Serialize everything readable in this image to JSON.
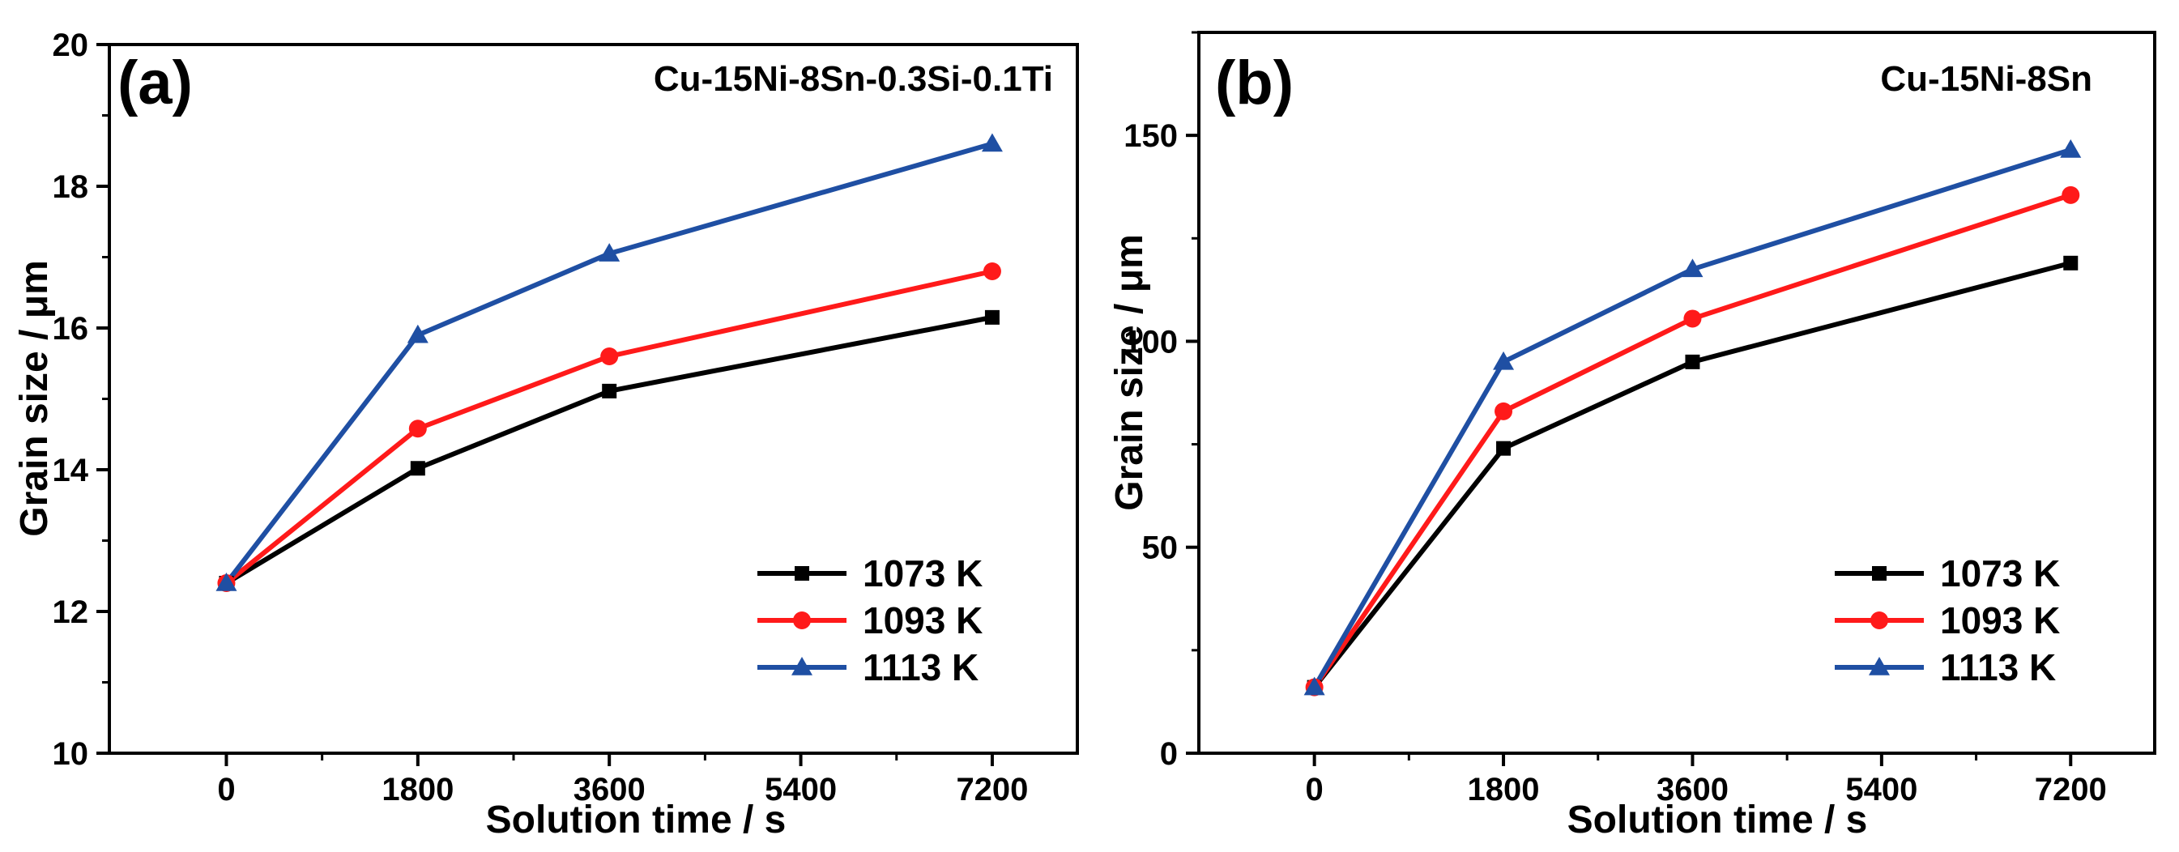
{
  "chart_data": [
    {
      "type": "line",
      "panel_label": "(a)",
      "title": "Cu-15Ni-8Sn-0.3Si-0.1Ti",
      "xlabel": "Solution time / s",
      "ylabel": "Grain size / μm",
      "x": [
        0,
        1800,
        3600,
        7200
      ],
      "xticks": [
        0,
        1800,
        3600,
        5400,
        7200
      ],
      "xtick_labels": [
        "0",
        "1800",
        "3600",
        "5400",
        "7200"
      ],
      "xlim": [
        -1100,
        8000
      ],
      "yticks": [
        10,
        12,
        14,
        16,
        18,
        20
      ],
      "ytick_labels": [
        "10",
        "12",
        "14",
        "16",
        "18",
        "20"
      ],
      "ylim": [
        10,
        20
      ],
      "grid": false,
      "legend_position": "bottom-right",
      "series": [
        {
          "name": "1073 K",
          "color": "#000000",
          "marker": "square",
          "values": [
            12.4,
            14.02,
            15.11,
            16.15
          ]
        },
        {
          "name": "1093 K",
          "color": "#ff1a1a",
          "marker": "circle",
          "values": [
            12.4,
            14.58,
            15.6,
            16.8
          ]
        },
        {
          "name": "1113 K",
          "color": "#1f4fa3",
          "marker": "triangle",
          "values": [
            12.4,
            15.9,
            17.05,
            18.6
          ]
        }
      ]
    },
    {
      "type": "line",
      "panel_label": "(b)",
      "title": "Cu-15Ni-8Sn",
      "xlabel": "Solution time / s",
      "ylabel": "Grain size / μm",
      "x": [
        0,
        1800,
        3600,
        7200
      ],
      "xticks": [
        0,
        1800,
        3600,
        5400,
        7200
      ],
      "xtick_labels": [
        "0",
        "1800",
        "3600",
        "5400",
        "7200"
      ],
      "xlim": [
        -1100,
        8000
      ],
      "yticks": [
        0,
        50,
        100,
        150
      ],
      "ytick_labels": [
        "0",
        "50",
        "100",
        "150"
      ],
      "ylim": [
        0,
        175
      ],
      "grid": false,
      "legend_position": "bottom-right",
      "series": [
        {
          "name": "1073 K",
          "color": "#000000",
          "marker": "square",
          "values": [
            16,
            74,
            95,
            119
          ]
        },
        {
          "name": "1093 K",
          "color": "#ff1a1a",
          "marker": "circle",
          "values": [
            16,
            83,
            105.5,
            135.5
          ]
        },
        {
          "name": "1113 K",
          "color": "#1f4fa3",
          "marker": "triangle",
          "values": [
            16,
            95,
            117.5,
            146.5
          ]
        }
      ]
    }
  ]
}
